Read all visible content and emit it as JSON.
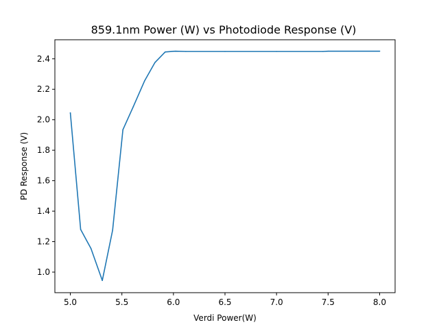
{
  "chart_data": {
    "type": "line",
    "title": "859.1nm Power (W) vs Photodiode Response (V)",
    "xlabel": "Verdi Power(W)",
    "ylabel": "PD Response (V)",
    "xlim": [
      4.85,
      8.15
    ],
    "ylim": [
      0.865,
      2.525
    ],
    "xticks": [
      "5.0",
      "5.5",
      "6.0",
      "6.5",
      "7.0",
      "7.5",
      "8.0"
    ],
    "yticks": [
      "1.0",
      "1.2",
      "1.4",
      "1.6",
      "1.8",
      "2.0",
      "2.2",
      "2.4"
    ],
    "grid": false,
    "colors": {
      "series": "#1f77b4"
    },
    "series": [
      {
        "x": [
          5.0,
          5.1,
          5.2,
          5.31,
          5.41,
          5.51,
          5.61,
          5.72,
          5.82,
          5.92,
          6.02,
          6.12,
          6.5,
          7.0,
          7.45,
          7.5,
          8.0
        ],
        "y": [
          2.045,
          1.28,
          1.155,
          0.945,
          1.275,
          1.935,
          2.085,
          2.255,
          2.375,
          2.445,
          2.45,
          2.448,
          2.448,
          2.448,
          2.448,
          2.45,
          2.45
        ]
      }
    ]
  }
}
